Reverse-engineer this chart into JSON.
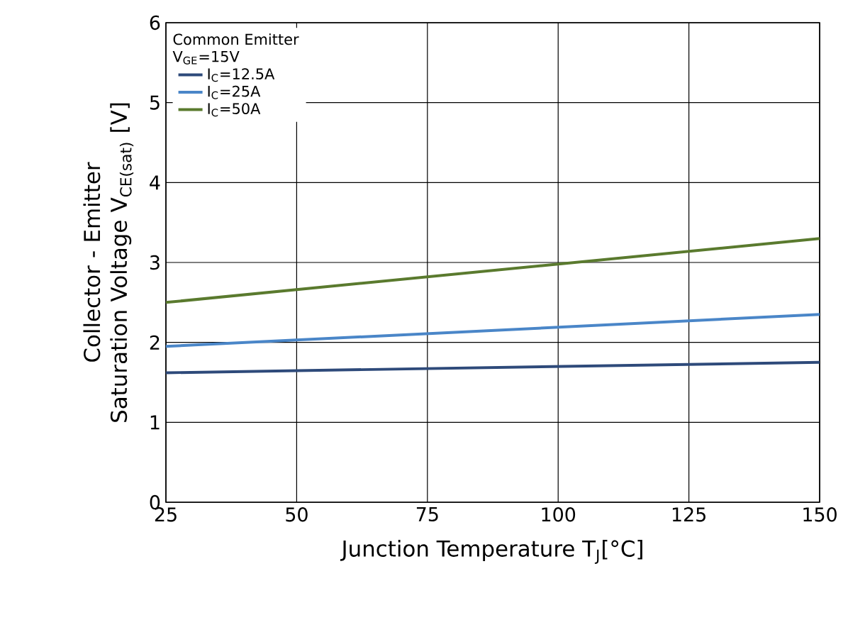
{
  "chart_data": {
    "type": "line",
    "xlabel": "Junction Temperature T$_{J}$[°C]",
    "ylabel": "Collector - Emitter Saturation Voltage V$_{CE(sat)}$ [V]",
    "legend_title": "Common Emitter",
    "annotations": [
      "V$_{GE}$=15V"
    ],
    "x": [
      25,
      150
    ],
    "series": [
      {
        "name": "I$_{C}$=12.5A",
        "color": "#2e4a7a",
        "values": [
          1.62,
          1.75
        ]
      },
      {
        "name": "I$_{C}$=25A",
        "color": "#4a86c8",
        "values": [
          1.95,
          2.35
        ]
      },
      {
        "name": "I$_{C}$=50A",
        "color": "#5a7a2e",
        "values": [
          2.5,
          3.3
        ]
      }
    ],
    "xlim": [
      25,
      150
    ],
    "ylim": [
      0,
      6
    ],
    "xticks": [
      25,
      50,
      75,
      100,
      125,
      150
    ],
    "yticks": [
      0,
      1,
      2,
      3,
      4,
      5,
      6
    ],
    "grid": true,
    "legend": "top left",
    "marker": "none",
    "line_style": "solid"
  }
}
